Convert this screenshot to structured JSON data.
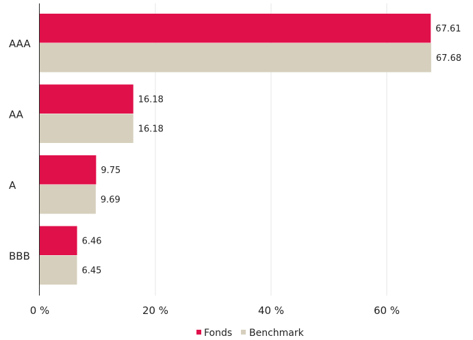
{
  "chart_data": {
    "type": "bar",
    "orientation": "horizontal",
    "categories": [
      "AAA",
      "AA",
      "A",
      "BBB"
    ],
    "series": [
      {
        "name": "Fonds",
        "values": [
          67.61,
          16.18,
          9.75,
          6.46
        ],
        "color": "#e0104a"
      },
      {
        "name": "Benchmark",
        "values": [
          67.68,
          16.18,
          9.69,
          6.45
        ],
        "color": "#d6cfbd"
      }
    ],
    "xlim": [
      0,
      75
    ],
    "xticks": [
      0,
      20,
      40,
      60
    ],
    "xtick_labels": [
      "0 %",
      "20 %",
      "40 %",
      "60 %"
    ],
    "data_labels": [
      [
        "67.61",
        "16.18",
        "9.75",
        "6.46"
      ],
      [
        "67.68",
        "16.18",
        "9.69",
        "6.45"
      ]
    ],
    "grid": "vertical",
    "legend_position": "bottom-center"
  },
  "legend": {
    "items": [
      {
        "label": "Fonds",
        "color": "#e0104a"
      },
      {
        "label": "Benchmark",
        "color": "#d6cfbd"
      }
    ]
  }
}
